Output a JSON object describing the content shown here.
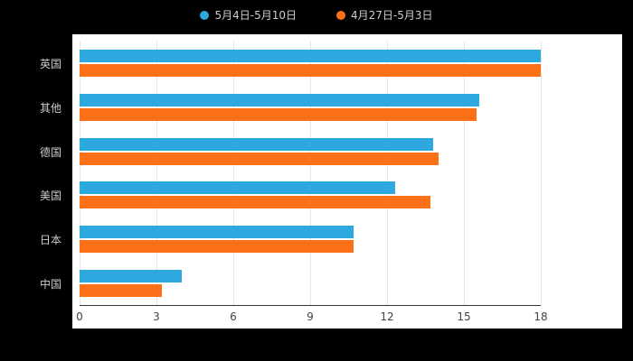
{
  "chart_data": {
    "type": "bar",
    "orientation": "horizontal",
    "categories": [
      "英国",
      "其他",
      "德国",
      "美国",
      "日本",
      "中国"
    ],
    "series": [
      {
        "name": "5月4日-5月10日",
        "color": "#2EA9DF",
        "values": [
          18,
          15.6,
          13.8,
          12.3,
          10.7,
          4
        ]
      },
      {
        "name": "4月27日-5月3日",
        "color": "#FC7118",
        "values": [
          18,
          15.5,
          14,
          13.7,
          10.7,
          3.2
        ]
      }
    ],
    "xlim": [
      0,
      18
    ],
    "xticks": [
      0,
      3,
      6,
      9,
      12,
      15,
      18
    ],
    "grid": true,
    "legend_position": "top",
    "title": "",
    "xlabel": "",
    "ylabel": ""
  },
  "colors": {
    "background": "#000000",
    "plot_background": "#ffffff",
    "gridline": "#e6e6e6",
    "axis_line": "#333333",
    "tick_label": "#444444",
    "category_label": "#cccccc",
    "legend_label": "#cccccc"
  }
}
